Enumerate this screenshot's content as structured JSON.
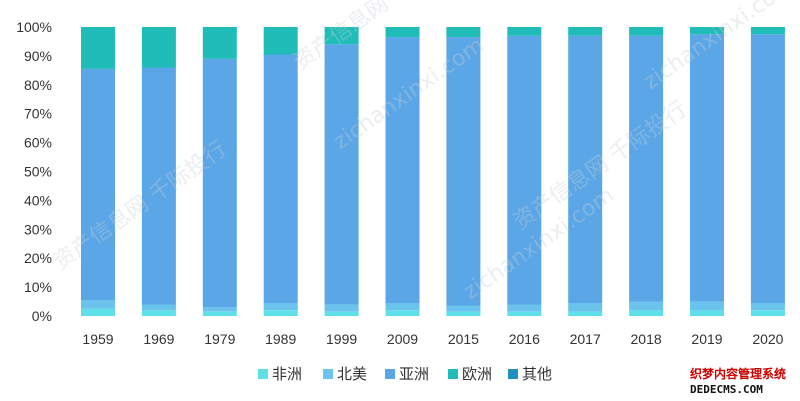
{
  "chart_data": {
    "type": "bar",
    "stacked": true,
    "percent": true,
    "categories": [
      "1959",
      "1969",
      "1979",
      "1989",
      "1999",
      "2009",
      "2015",
      "2016",
      "2017",
      "2018",
      "2019",
      "2020"
    ],
    "series": [
      {
        "name": "非洲",
        "color": "#5fe0e8",
        "values": [
          2.5,
          2.0,
          1.5,
          2.0,
          1.5,
          2.0,
          1.5,
          1.5,
          1.5,
          2.0,
          2.0,
          2.0
        ]
      },
      {
        "name": "北美",
        "color": "#69c3ec",
        "values": [
          3.0,
          2.0,
          1.5,
          2.5,
          2.5,
          2.5,
          2.0,
          2.5,
          3.0,
          3.0,
          3.0,
          2.5
        ]
      },
      {
        "name": "亚洲",
        "color": "#5aa6e6",
        "values": [
          80.0,
          82.0,
          86.0,
          86.0,
          90.0,
          92.0,
          93.0,
          93.0,
          92.5,
          92.0,
          92.5,
          93.0
        ]
      },
      {
        "name": "欧洲",
        "color": "#1fbcb8",
        "values": [
          14.5,
          14.0,
          11.0,
          9.5,
          6.0,
          3.5,
          3.5,
          3.0,
          3.0,
          3.0,
          2.5,
          2.5
        ]
      },
      {
        "name": "其他",
        "color": "#1d8fc0",
        "values": [
          0,
          0,
          0,
          0,
          0,
          0,
          0,
          0,
          0,
          0,
          0,
          0
        ]
      }
    ],
    "yticks": [
      "0%",
      "10%",
      "20%",
      "30%",
      "40%",
      "50%",
      "60%",
      "70%",
      "80%",
      "90%",
      "100%"
    ],
    "ylim": [
      0,
      100
    ],
    "grid": false,
    "legend": "bottom"
  },
  "watermarks": {
    "diagonal": [
      "资产信息网 千际投行",
      "zichanxinxi.com",
      "资产信息网 千际投行",
      "zichanxinxi.com",
      "资产信息网 千际投行",
      "zichanxinxi.com"
    ],
    "corner_line1": "织梦内容管理系统",
    "corner_line2": "DEDECMS.COM"
  }
}
